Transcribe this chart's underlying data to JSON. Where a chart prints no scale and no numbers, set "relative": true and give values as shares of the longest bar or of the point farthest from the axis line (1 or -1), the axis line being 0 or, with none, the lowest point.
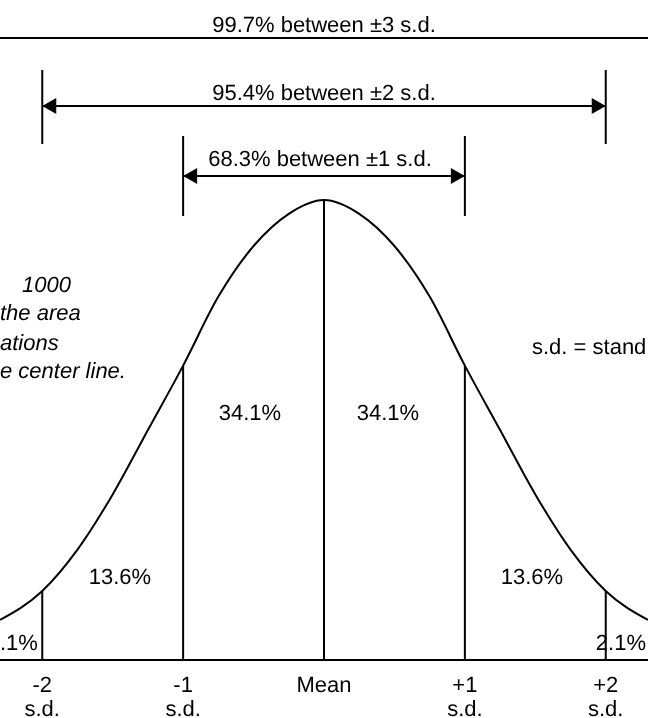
{
  "chart_data": {
    "type": "line",
    "relative": true,
    "x": [
      -2.3,
      -2,
      -1.75,
      -1.5,
      -1.25,
      -1,
      -0.75,
      -0.5,
      -0.25,
      0,
      0.25,
      0.5,
      0.75,
      1,
      1.25,
      1.5,
      1.75,
      2,
      2.3
    ],
    "series": [
      {
        "color": "#000000",
        "values": [
          0.087,
          0.15,
          0.24,
          0.36,
          0.5,
          0.64,
          0.79,
          0.9,
          0.97,
          1,
          0.97,
          0.9,
          0.79,
          0.64,
          0.5,
          0.36,
          0.24,
          0.15,
          0.087
        ]
      }
    ],
    "xlim": [
      -2.3,
      2.3
    ],
    "xticks": [
      {
        "value": -2,
        "label": "-2\ns.d."
      },
      {
        "value": -1,
        "label": "-1\ns.d."
      },
      {
        "value": 0,
        "label": "Mean"
      },
      {
        "value": 1,
        "label": "+1\ns.d."
      },
      {
        "value": 2,
        "label": "+2\ns.d."
      }
    ],
    "ref_lines": [
      {
        "axis": "x",
        "value": -2,
        "color": "#000000"
      },
      {
        "axis": "x",
        "value": -1,
        "color": "#000000"
      },
      {
        "axis": "x",
        "value": 0,
        "color": "#000000"
      },
      {
        "axis": "x",
        "value": 1,
        "color": "#000000"
      },
      {
        "axis": "x",
        "value": 2,
        "color": "#000000"
      }
    ],
    "annotations": [
      "99.7% between ±3 s.d.",
      "95.4% between ±2 s.d.",
      "68.3% between ±1 s.d.",
      "1000",
      "the area",
      "ations",
      "e center line.",
      "s.d. = stand",
      "34.1%",
      "34.1%",
      "13.6%",
      "13.6%",
      ".1%",
      "2.1%"
    ],
    "marker": "none",
    "line_style": "solid"
  }
}
